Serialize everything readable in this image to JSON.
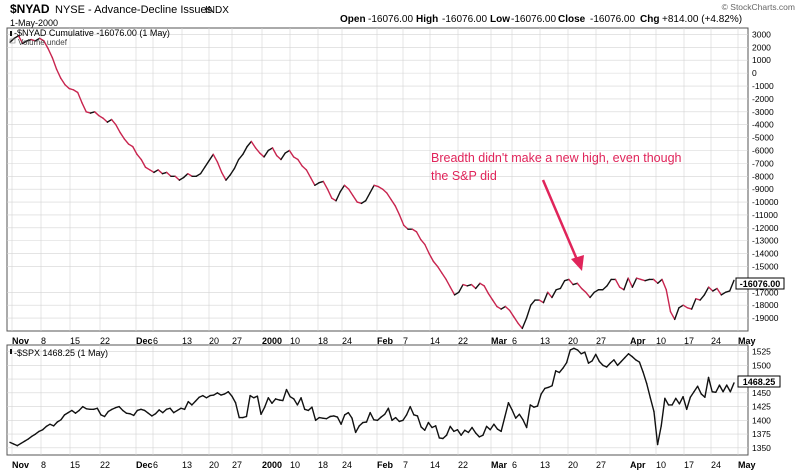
{
  "header": {
    "symbol": "$NYAD",
    "description": "NYSE - Advance-Decline Issues",
    "exchange": "INDX",
    "date": "1-May-2000",
    "open_label": "Open",
    "open_value": "-16076.00",
    "high_label": "High",
    "high_value": "-16076.00",
    "low_label": "Low",
    "low_value": "-16076.00",
    "close_label": "Close",
    "close_value": "-16076.00",
    "chg_label": "Chg",
    "chg_value": "+814.00 (+4.82%)",
    "watermark": "© StockCharts.com",
    "legend_line": "-$NYAD Cumulative -16076.00 (1 May)",
    "legend_volume": "Volume undef"
  },
  "annotation": {
    "line1": "Breadth didn't make a new high, even though",
    "line2": "the S&P did"
  },
  "colors": {
    "up": "#c8254f",
    "down": "#111111",
    "annotation": "#e0245a",
    "grid": "#d4d4d4",
    "axis": "#666666",
    "last_box": "#000000"
  },
  "chart_data": [
    {
      "type": "line",
      "title": "$NYAD Cumulative",
      "ylim": [
        -20000,
        3500
      ],
      "yticks": [
        3000,
        2000,
        1000,
        0,
        -1000,
        -2000,
        -3000,
        -4000,
        -5000,
        -6000,
        -7000,
        -8000,
        -9000,
        -10000,
        -11000,
        -12000,
        -13000,
        -14000,
        -15000,
        -17000,
        -18000,
        -19000
      ],
      "ytick_labels": [
        "3000",
        "2000",
        "1000",
        "0",
        "-1000",
        "-2000",
        "-3000",
        "-4000",
        "-5000",
        "-6000",
        "-7000",
        "-8000",
        "-9000",
        "-10000",
        "-11000",
        "-12000",
        "-13000",
        "-14000",
        "-15000",
        "-17000",
        "-18000",
        "-19000"
      ],
      "last_value_label": "-16076.00",
      "values": [
        2400,
        2700,
        2900,
        2300,
        2500,
        2600,
        2500,
        2700,
        2500,
        1900,
        1200,
        300,
        -400,
        -900,
        -1200,
        -1300,
        -1500,
        -2300,
        -3000,
        -3100,
        -3000,
        -3300,
        -3500,
        -3800,
        -3600,
        -4000,
        -4600,
        -5100,
        -5500,
        -5700,
        -6300,
        -6700,
        -7300,
        -7500,
        -7700,
        -7500,
        -7800,
        -7700,
        -8000,
        -8000,
        -8300,
        -8100,
        -7800,
        -8000,
        -8000,
        -7800,
        -7300,
        -6800,
        -6300,
        -6900,
        -7700,
        -8300,
        -7900,
        -7400,
        -6700,
        -6300,
        -5700,
        -5300,
        -5800,
        -6200,
        -6500,
        -6000,
        -5800,
        -6400,
        -6700,
        -6200,
        -6000,
        -6500,
        -6700,
        -7200,
        -7500,
        -8100,
        -8700,
        -8500,
        -8400,
        -9000,
        -9700,
        -9900,
        -9200,
        -8700,
        -9000,
        -9500,
        -10000,
        -10100,
        -9900,
        -9300,
        -8700,
        -8800,
        -9000,
        -9300,
        -9800,
        -10300,
        -11000,
        -11800,
        -12100,
        -12100,
        -12300,
        -12900,
        -13300,
        -14000,
        -14600,
        -15000,
        -15500,
        -16000,
        -16600,
        -17200,
        -17000,
        -16400,
        -16500,
        -16400,
        -16700,
        -16300,
        -16500,
        -17100,
        -17600,
        -18100,
        -18300,
        -18100,
        -18400,
        -18900,
        -19400,
        -19800,
        -19000,
        -18000,
        -17600,
        -17600,
        -17800,
        -17000,
        -17400,
        -16800,
        -16700,
        -16100,
        -16000,
        -16400,
        -16300,
        -16700,
        -17000,
        -17400,
        -17000,
        -16800,
        -16800,
        -16500,
        -16000,
        -16000,
        -16600,
        -16800,
        -15900,
        -16600,
        -15900,
        -16000,
        -16100,
        -16000,
        -16000,
        -16300,
        -16000,
        -16800,
        -18500,
        -19100,
        -18200,
        -18000,
        -18200,
        -18300,
        -17500,
        -17600,
        -17200,
        -16600,
        -16900,
        -16700,
        -17200,
        -17000,
        -16890,
        -16076
      ]
    },
    {
      "type": "line",
      "title": "$SPX",
      "legend": "-$SPX 1468.25 (1 May)",
      "ylim": [
        1337,
        1537
      ],
      "yticks": [
        1525,
        1500,
        1475,
        1450,
        1425,
        1400,
        1375,
        1350
      ],
      "ytick_labels": [
        "1525",
        "1500",
        "1475",
        "1450",
        "1425",
        "1400",
        "1375",
        "1350"
      ],
      "last_value_label": "1468.25",
      "values": [
        1360,
        1357,
        1354,
        1358,
        1362,
        1366,
        1371,
        1375,
        1380,
        1383,
        1389,
        1393,
        1390,
        1397,
        1401,
        1410,
        1414,
        1418,
        1413,
        1418,
        1425,
        1421,
        1420,
        1420,
        1422,
        1410,
        1407,
        1416,
        1420,
        1423,
        1425,
        1418,
        1413,
        1412,
        1409,
        1418,
        1420,
        1418,
        1413,
        1408,
        1412,
        1419,
        1414,
        1420,
        1422,
        1414,
        1418,
        1422,
        1420,
        1434,
        1428,
        1435,
        1442,
        1445,
        1441,
        1445,
        1446,
        1450,
        1446,
        1448,
        1452,
        1444,
        1432,
        1405,
        1405,
        1407,
        1445,
        1441,
        1444,
        1411,
        1424,
        1441,
        1431,
        1439,
        1437,
        1436,
        1456,
        1443,
        1439,
        1428,
        1441,
        1420,
        1418,
        1424,
        1400,
        1405,
        1404,
        1403,
        1407,
        1408,
        1406,
        1393,
        1410,
        1414,
        1404,
        1378,
        1390,
        1396,
        1397,
        1414,
        1401,
        1400,
        1406,
        1411,
        1422,
        1400,
        1405,
        1398,
        1400,
        1410,
        1425,
        1410,
        1408,
        1388,
        1382,
        1396,
        1387,
        1390,
        1368,
        1367,
        1373,
        1389,
        1380,
        1383,
        1373,
        1382,
        1378,
        1387,
        1377,
        1370,
        1373,
        1389,
        1383,
        1393,
        1384,
        1380,
        1406,
        1432,
        1419,
        1404,
        1411,
        1401,
        1387,
        1428,
        1424,
        1426,
        1448,
        1458,
        1460,
        1463,
        1490,
        1487,
        1495,
        1505,
        1528,
        1531,
        1528,
        1521,
        1524,
        1504,
        1508,
        1520,
        1507,
        1500,
        1497,
        1504,
        1510,
        1500,
        1507,
        1514,
        1521,
        1516,
        1510,
        1506,
        1488,
        1467,
        1441,
        1416,
        1356,
        1390,
        1440,
        1428,
        1428,
        1440,
        1430,
        1443,
        1420,
        1442,
        1452,
        1462,
        1448,
        1442,
        1478,
        1452,
        1451,
        1464,
        1452,
        1464,
        1452,
        1468
      ]
    }
  ],
  "x_axis_labels": [
    "Nov",
    "8",
    "15",
    "22",
    "Dec",
    "6",
    "13",
    "20",
    "27",
    "2000",
    "10",
    "18",
    "24",
    "Feb",
    "7",
    "14",
    "22",
    "Mar",
    "6",
    "13",
    "20",
    "27",
    "Apr",
    "10",
    "17",
    "24",
    "May"
  ]
}
